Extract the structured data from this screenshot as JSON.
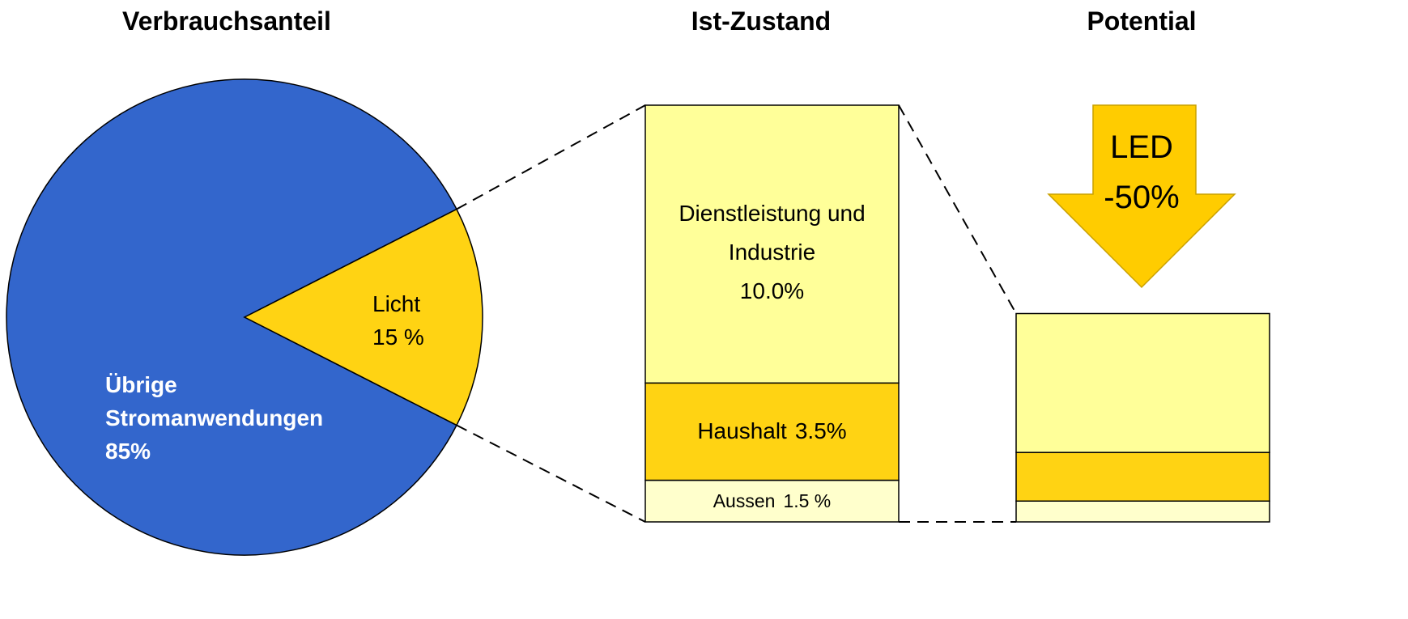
{
  "chart_data": [
    {
      "type": "pie",
      "title": "Verbrauchsanteil",
      "categories": [
        "Übrige Stromanwendungen",
        "Licht"
      ],
      "values": [
        85,
        15
      ],
      "value_labels": [
        "85%",
        "15 %"
      ],
      "colors": [
        "#3366cc",
        "#ffd313"
      ]
    },
    {
      "type": "stacked_bar",
      "title": "Ist-Zustand",
      "ylim": [
        0,
        15
      ],
      "series": [
        {
          "name": "Aussen",
          "color": "#ffffcc",
          "values": [
            1.5
          ],
          "value_labels": [
            "1.5 %"
          ]
        },
        {
          "name": "Haushalt",
          "color": "#ffd313",
          "values": [
            3.5
          ],
          "value_labels": [
            "3.5%"
          ]
        },
        {
          "name": "Dienstleistung und Industrie",
          "color": "#ffff99",
          "values": [
            10.0
          ],
          "value_labels": [
            "10.0%"
          ]
        }
      ]
    },
    {
      "type": "stacked_bar",
      "title": "Potential",
      "ylim": [
        0,
        15
      ],
      "series": [
        {
          "color": "#ffffcc",
          "values": [
            0.75
          ]
        },
        {
          "color": "#ffd313",
          "values": [
            1.75
          ]
        },
        {
          "color": "#ffff99",
          "values": [
            5
          ]
        }
      ],
      "annotations": [
        "LED",
        "-50%"
      ]
    }
  ]
}
